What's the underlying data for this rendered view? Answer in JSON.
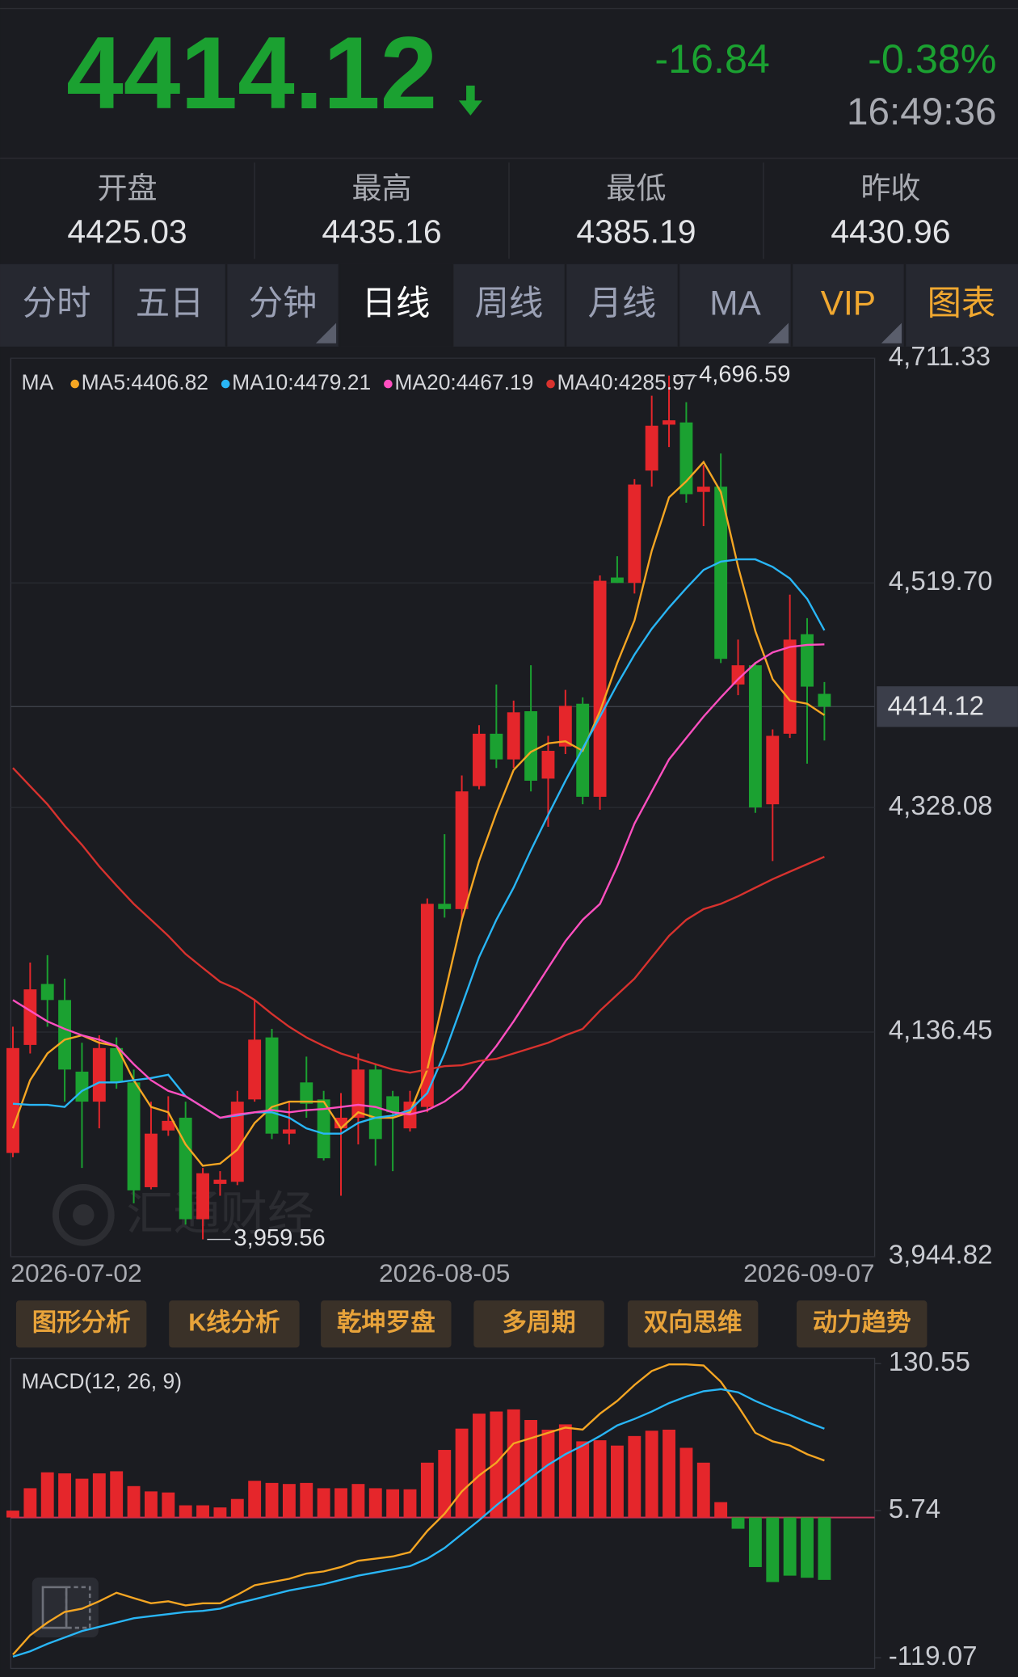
{
  "header": {
    "price": "4414.12",
    "change": "-16.84",
    "change_pct": "-0.38%",
    "time": "16:49:36"
  },
  "stats": [
    {
      "label": "开盘",
      "value": "4425.03"
    },
    {
      "label": "最高",
      "value": "4435.16"
    },
    {
      "label": "最低",
      "value": "4385.19"
    },
    {
      "label": "昨收",
      "value": "4430.96"
    }
  ],
  "tabs": [
    "分时",
    "五日",
    "分钟",
    "日线",
    "周线",
    "月线",
    "MA",
    "VIP",
    "图表"
  ],
  "active_tab": 3,
  "buttons": [
    "图形分析",
    "K线分析",
    "乾坤罗盘",
    "多周期",
    "双向思维",
    "动力趋势"
  ],
  "watermark": "汇通财经",
  "chart_data": [
    {
      "type": "candlestick",
      "legend_title": "MA",
      "categories": [
        "2026-07-02",
        null,
        null,
        null,
        null,
        null,
        null,
        null,
        null,
        null,
        null,
        null,
        null,
        null,
        null,
        null,
        null,
        null,
        null,
        null,
        null,
        null,
        null,
        null,
        null,
        "2026-08-05",
        null,
        null,
        null,
        null,
        null,
        null,
        null,
        null,
        null,
        null,
        null,
        null,
        null,
        null,
        null,
        null,
        null,
        null,
        null,
        null,
        null,
        "2026-09-07"
      ],
      "open": [
        4033.3,
        4125.5,
        4177.5,
        4163.8,
        4102.7,
        4077.1,
        4122.8,
        4093.5,
        4004.1,
        4052.5,
        4063.4,
        3976.8,
        4006.9,
        4008.7,
        4079.0,
        4131.9,
        4049.8,
        4093.5,
        4079.0,
        4054.3,
        4063.4,
        4104.5,
        4081.7,
        4054.3,
        4072.6,
        4245.9,
        4241.4,
        4346.3,
        4391.0,
        4369.1,
        4410.2,
        4352.7,
        4380.1,
        4416.6,
        4337.2,
        4524.3,
        4519.7,
        4615.5,
        4654.7,
        4656.6,
        4597.3,
        4601.8,
        4433.0,
        4449.4,
        4330.8,
        4391.0,
        4475.9,
        4425.03
      ],
      "high": [
        4141.0,
        4195.8,
        4202.1,
        4182.1,
        4127.3,
        4133.7,
        4131.9,
        4104.5,
        4077.1,
        4081.7,
        4077.1,
        4020.5,
        4017.8,
        4086.3,
        4163.8,
        4139.2,
        4077.1,
        4115.5,
        4086.3,
        4084.4,
        4118.2,
        4109.1,
        4086.3,
        4086.3,
        4250.5,
        4305.3,
        4355.4,
        4398.3,
        4433.0,
        4419.3,
        4449.4,
        4389.2,
        4428.4,
        4422.0,
        4526.1,
        4542.5,
        4608.2,
        4679.4,
        4696.59,
        4673.9,
        4620.1,
        4630.1,
        4471.3,
        4452.2,
        4394.7,
        4509.7,
        4489.6,
        4435.16
      ],
      "low": [
        4029.7,
        4118.2,
        4141.0,
        4077.1,
        4020.5,
        4054.3,
        4088.1,
        3990.4,
        4002.3,
        4047.9,
        3972.2,
        3959.56,
        3996.8,
        4005.9,
        4077.1,
        4045.2,
        4040.6,
        4063.4,
        4026.9,
        3996.8,
        4040.6,
        4022.4,
        4017.8,
        4051.6,
        4068.0,
        4234.1,
        4232.3,
        4343.6,
        4361.8,
        4361.8,
        4341.8,
        4311.6,
        4373.7,
        4330.8,
        4326.2,
        4519.7,
        4510.6,
        4601.8,
        4635.6,
        4588.1,
        4568.1,
        4451.3,
        4423.9,
        4323.5,
        4282.4,
        4387.4,
        4365.5,
        4385.19
      ],
      "close": [
        4122.8,
        4172.9,
        4163.8,
        4104.5,
        4077.1,
        4122.8,
        4093.5,
        4001.4,
        4049.8,
        4060.7,
        3976.8,
        4016.0,
        4010.5,
        4077.1,
        4130.0,
        4049.8,
        4053.4,
        4075.3,
        4028.8,
        4063.4,
        4104.5,
        4045.2,
        4068.0,
        4077.1,
        4245.9,
        4241.4,
        4341.8,
        4391.0,
        4369.1,
        4409.3,
        4350.9,
        4376.4,
        4414.8,
        4337.2,
        4521.5,
        4519.7,
        4603.6,
        4653.8,
        4658.4,
        4595.4,
        4601.8,
        4454.9,
        4449.4,
        4328.1,
        4389.2,
        4471.3,
        4431.2,
        4414.12
      ],
      "up_color": "#e5262b",
      "down_color": "#1ba131",
      "series": [
        {
          "name": "MA5:4406.82",
          "color": "#f5a623",
          "values": [
            4054.3,
            4095.4,
            4118.2,
            4130.0,
            4133.7,
            4127.3,
            4124.6,
            4095.4,
            4072.6,
            4068.0,
            4040.6,
            4022.4,
            4024.2,
            4036.1,
            4058.9,
            4072.6,
            4077.1,
            4077.1,
            4077.1,
            4054.3,
            4068.0,
            4063.4,
            4063.4,
            4068.0,
            4104.5,
            4168.4,
            4232.3,
            4282.4,
            4323.5,
            4360.0,
            4375.5,
            4382.8,
            4384.6,
            4376.4,
            4410.2,
            4451.3,
            4487.8,
            4547.1,
            4592.7,
            4606.4,
            4622.8,
            4597.3,
            4533.4,
            4478.6,
            4437.6,
            4419.3,
            4416.6,
            4406.82
          ]
        },
        {
          "name": "MA10:4479.21",
          "color": "#29b6f6",
          "values": [
            4075.3,
            4074.4,
            4074.4,
            4072.6,
            4086.3,
            4093.5,
            4093.5,
            4095.4,
            4097.2,
            4100.0,
            4081.7,
            4072.6,
            4063.4,
            4065.3,
            4068.0,
            4068.0,
            4063.4,
            4054.3,
            4049.8,
            4049.8,
            4059.0,
            4063.4,
            4065.3,
            4069.8,
            4084.4,
            4118.2,
            4159.3,
            4200.3,
            4232.3,
            4259.6,
            4291.6,
            4321.7,
            4350.9,
            4378.3,
            4405.6,
            4433.0,
            4458.6,
            4480.5,
            4498.7,
            4515.1,
            4530.7,
            4537.9,
            4539.8,
            4539.8,
            4533.4,
            4523.4,
            4506.0,
            4479.21
          ]
        },
        {
          "name": "MA20:4467.19",
          "color": "#ff4fc0",
          "values": [
            4163.8,
            4154.7,
            4145.6,
            4139.2,
            4133.7,
            4130.0,
            4124.6,
            4109.1,
            4095.4,
            4086.3,
            4081.7,
            4072.6,
            4063.4,
            4066.2,
            4068.0,
            4069.8,
            4068.0,
            4069.8,
            4070.8,
            4072.6,
            4074.4,
            4072.6,
            4068.0,
            4066.2,
            4069.8,
            4077.1,
            4088.1,
            4106.3,
            4124.6,
            4145.6,
            4168.4,
            4191.2,
            4214.0,
            4232.3,
            4245.9,
            4277.9,
            4314.4,
            4341.8,
            4369.1,
            4387.4,
            4405.6,
            4422.0,
            4437.6,
            4451.3,
            4460.4,
            4465.0,
            4466.8,
            4467.19
          ]
        },
        {
          "name": "MA40:4285.97",
          "color": "#d8322e",
          "values": [
            4361.8,
            4346.3,
            4330.8,
            4312.5,
            4296.1,
            4277.9,
            4261.5,
            4245.9,
            4232.3,
            4218.6,
            4203.1,
            4191.2,
            4179.4,
            4173.0,
            4163.8,
            4152.0,
            4141.0,
            4131.9,
            4124.6,
            4118.2,
            4113.6,
            4109.1,
            4104.5,
            4101.8,
            4104.5,
            4107.3,
            4108.2,
            4111.8,
            4113.6,
            4118.2,
            4122.8,
            4127.3,
            4133.7,
            4139.2,
            4154.7,
            4168.4,
            4182.1,
            4200.3,
            4218.6,
            4232.3,
            4241.4,
            4245.9,
            4252.3,
            4259.6,
            4266.9,
            4273.3,
            4279.7,
            4285.97
          ]
        }
      ],
      "ylim": [
        3944.82,
        4711.33
      ],
      "yticks": [
        {
          "value": 4711.33,
          "label": "4,711.33"
        },
        {
          "value": 4519.7,
          "label": "4,519.70"
        },
        {
          "value": 4328.08,
          "label": "4,328.08"
        },
        {
          "value": 4136.45,
          "label": "4,136.45"
        },
        {
          "value": 3944.82,
          "label": "3,944.82"
        }
      ],
      "last_price": 4414.12,
      "max_label": {
        "value": 4696.59,
        "label": "4,696.59"
      },
      "min_label": {
        "value": 3959.56,
        "label": "3,959.56"
      },
      "grid": true
    },
    {
      "type": "macd",
      "title": "MACD(12, 26, 9)",
      "histogram": [
        5.8,
        24.8,
        38.3,
        37.4,
        32.9,
        37.4,
        39.2,
        26.6,
        22.1,
        21.2,
        10.3,
        10.3,
        8.5,
        15.7,
        31.1,
        29.3,
        28.4,
        29.3,
        24.8,
        24.8,
        28.4,
        24.8,
        23.9,
        23.9,
        46.5,
        57.3,
        75.4,
        88.1,
        89.9,
        91.7,
        82.7,
        74.5,
        79.0,
        64.6,
        65.5,
        61.0,
        69.1,
        73.6,
        74.5,
        59.1,
        46.5,
        13.0,
        -9.6,
        -42.1,
        -54.8,
        -49.4,
        -51.2,
        -53.0
      ],
      "up_color": "#e5262b",
      "down_color": "#1ba131",
      "zero_color": "#c8345a",
      "series": [
        {
          "color": "#f5a623",
          "values": [
            -116.4,
            -100.0,
            -89.2,
            -80.2,
            -77.4,
            -71.1,
            -63.9,
            -68.4,
            -72.9,
            -71.1,
            -74.7,
            -72.9,
            -72.9,
            -65.7,
            -57.5,
            -54.8,
            -52.1,
            -47.6,
            -45.8,
            -42.1,
            -36.7,
            -34.9,
            -33.1,
            -29.5,
            -11.4,
            3.1,
            22.1,
            35.6,
            46.5,
            62.8,
            67.3,
            71.8,
            76.3,
            74.5,
            88.1,
            98.9,
            112.5,
            124.3,
            129.9,
            129.9,
            129.0,
            115.2,
            94.4,
            71.8,
            64.6,
            61.0,
            53.7,
            48.3
          ]
        },
        {
          "color": "#29b6f6",
          "values": [
            -118.2,
            -113.6,
            -107.3,
            -101.9,
            -96.4,
            -92.8,
            -89.2,
            -85.6,
            -83.8,
            -82.0,
            -80.2,
            -79.3,
            -77.4,
            -72.9,
            -69.3,
            -65.7,
            -62.0,
            -59.3,
            -56.6,
            -53.0,
            -49.4,
            -46.7,
            -44.0,
            -41.3,
            -34.9,
            -25.9,
            -14.1,
            -2.4,
            10.3,
            22.1,
            33.8,
            44.7,
            53.7,
            61.0,
            69.1,
            78.1,
            83.6,
            89.9,
            97.1,
            102.6,
            107.1,
            108.9,
            106.2,
            98.9,
            92.6,
            87.2,
            80.8,
            75.4
          ]
        }
      ],
      "ylim": [
        -119.07,
        130.55
      ],
      "yticks": [
        130.55,
        5.74,
        -119.07
      ]
    }
  ]
}
